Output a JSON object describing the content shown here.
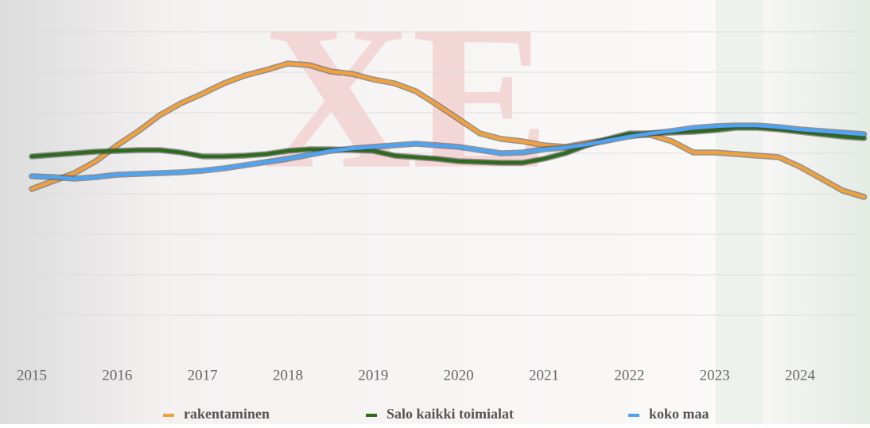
{
  "chart_data": {
    "type": "line",
    "x": [
      2015,
      2015.25,
      2015.5,
      2015.75,
      2016,
      2016.25,
      2016.5,
      2016.75,
      2017,
      2017.25,
      2017.5,
      2017.75,
      2018,
      2018.25,
      2018.5,
      2018.75,
      2019,
      2019.25,
      2019.5,
      2019.75,
      2020,
      2020.25,
      2020.5,
      2020.75,
      2021,
      2021.25,
      2021.5,
      2021.75,
      2022,
      2022.25,
      2022.5,
      2022.75,
      2023,
      2023.25,
      2023.5,
      2023.75,
      2024,
      2024.25,
      2024.5,
      2024.75
    ],
    "series": [
      {
        "name": "rakentaminen",
        "color": "#f0a13e",
        "values": [
          159,
          169,
          179,
          194,
          214,
          232,
          252,
          267,
          279,
          292,
          302,
          309,
          317,
          315,
          307,
          304,
          297,
          292,
          282,
          265,
          247,
          229,
          222,
          219,
          214,
          212,
          217,
          221,
          227,
          227,
          219,
          205,
          205,
          203,
          201,
          199,
          187,
          172,
          157,
          149
        ]
      },
      {
        "name": "Salo kaikki toimialat",
        "color": "#2f6b1f",
        "values": [
          200,
          202,
          204,
          206,
          207,
          208,
          208,
          205,
          200,
          200,
          201,
          203,
          207,
          209,
          209,
          208,
          207,
          201,
          199,
          197,
          194,
          193,
          192,
          192,
          197,
          204,
          214,
          222,
          229,
          229,
          230,
          231,
          233,
          236,
          236,
          234,
          231,
          228,
          225,
          223
        ]
      },
      {
        "name": "koko maa",
        "color": "#4ea4f4",
        "values": [
          175,
          174,
          172,
          174,
          177,
          178,
          179,
          180,
          182,
          185,
          189,
          193,
          197,
          202,
          207,
          210,
          212,
          214,
          216,
          214,
          212,
          208,
          204,
          205,
          209,
          211,
          215,
          220,
          225,
          229,
          232,
          236,
          238,
          239,
          239,
          237,
          234,
          232,
          230,
          228
        ]
      }
    ],
    "xlim": [
      2015,
      2024.75
    ],
    "xticks": [
      2015,
      2016,
      2017,
      2018,
      2019,
      2020,
      2021,
      2022,
      2023,
      2024
    ],
    "ylim": [
      0,
      357
    ],
    "yticks": [
      0,
      51,
      102,
      153,
      204,
      255,
      306,
      357
    ],
    "grid": true,
    "legend": "bottom"
  }
}
